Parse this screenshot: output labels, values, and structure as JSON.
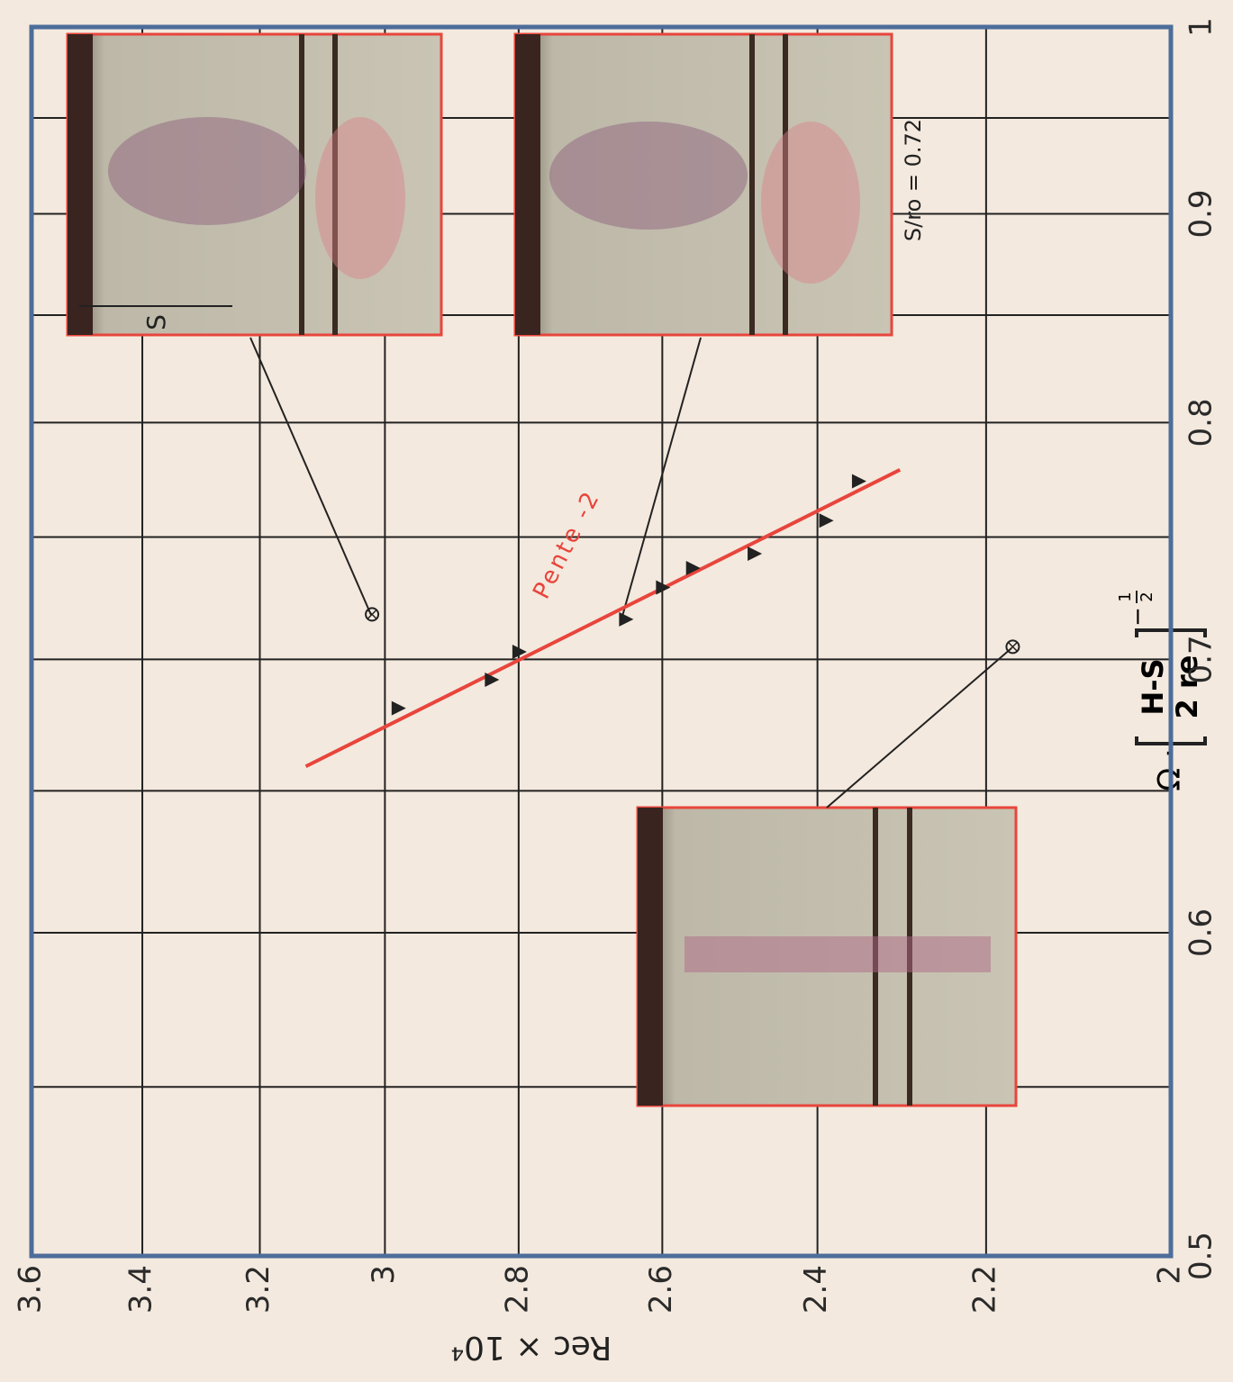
{
  "chart_data": {
    "type": "scatter",
    "x_label": {
      "prefix": "Ω ·",
      "numerator": "H-S",
      "denominator": "2 re",
      "exponent_sign": "−",
      "exponent_num": "1",
      "exponent_den": "2"
    },
    "y_label": "Rec × 10⁴",
    "xlim": [
      0.5,
      1.0
    ],
    "xticks": [
      0.5,
      0.6,
      0.7,
      0.8,
      0.9,
      1.0
    ],
    "x_minor_grid": [
      0.55,
      0.65,
      0.75,
      0.85,
      0.95
    ],
    "ylim": [
      2.0,
      3.6
    ],
    "yticks": [
      2.0,
      2.2,
      2.4,
      2.6,
      2.8,
      3.0,
      3.2,
      3.4,
      3.6
    ],
    "xscale": "log",
    "yscale": "log",
    "grid": true,
    "points": {
      "color": "#222222",
      "x": [
        0.681,
        0.692,
        0.703,
        0.716,
        0.729,
        0.737,
        0.743,
        0.757,
        0.774
      ],
      "y": [
        2.98,
        2.84,
        2.8,
        2.65,
        2.6,
        2.56,
        2.48,
        2.39,
        2.35
      ]
    },
    "marked_points": {
      "x": [
        0.718,
        0.705
      ],
      "y": [
        3.02,
        2.17
      ]
    },
    "fit_line": {
      "name": "Pente -2",
      "color": "#e8453c",
      "x": [
        0.659,
        0.779
      ],
      "y": [
        3.125,
        2.3
      ]
    },
    "annotation": "S/ro = 0.72",
    "photo_label": "S"
  }
}
